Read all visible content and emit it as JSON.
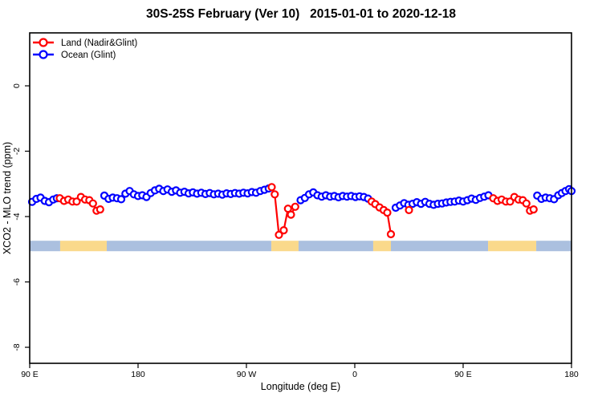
{
  "chart_data": {
    "type": "line",
    "title": "30S-25S February (Ver 10)   2015-01-01 to 2020-12-18",
    "xlabel": "Longitude (deg E)",
    "ylabel": "XCO2 - MLO trend (ppm)",
    "xlim": [
      90,
      540
    ],
    "ylim": [
      -8.49,
      1.62
    ],
    "grid": "off",
    "legend_position": "top-left",
    "x_ticks": [
      {
        "pos": 90,
        "label": "90 E"
      },
      {
        "pos": 180,
        "label": "180"
      },
      {
        "pos": 270,
        "label": "90 W"
      },
      {
        "pos": 360,
        "label": "0"
      },
      {
        "pos": 450,
        "label": "90 E"
      },
      {
        "pos": 540,
        "label": "180"
      }
    ],
    "y_ticks": [
      {
        "pos": 0,
        "label": "0"
      },
      {
        "pos": -2,
        "label": "-2"
      },
      {
        "pos": -4,
        "label": "-4"
      },
      {
        "pos": -6,
        "label": "-6"
      },
      {
        "pos": -8,
        "label": "-8"
      }
    ],
    "band": {
      "description": "surface type strip: land vs ocean along longitude",
      "top": -4.74,
      "bottom": -5.06,
      "colors": {
        "ocean": "#ABC0DF",
        "land": "#FAD98B"
      },
      "segments": [
        {
          "from": 90,
          "to": 115.3,
          "type": "ocean"
        },
        {
          "from": 115.3,
          "to": 154,
          "type": "land"
        },
        {
          "from": 154,
          "to": 290.7,
          "type": "ocean"
        },
        {
          "from": 290.7,
          "to": 313.3,
          "type": "land"
        },
        {
          "from": 313.3,
          "to": 375.3,
          "type": "ocean"
        },
        {
          "from": 375.3,
          "to": 390,
          "type": "land"
        },
        {
          "from": 390,
          "to": 470.7,
          "type": "ocean"
        },
        {
          "from": 470.7,
          "to": 510.7,
          "type": "land"
        },
        {
          "from": 510.7,
          "to": 540,
          "type": "ocean"
        }
      ]
    },
    "series": [
      {
        "id": "land",
        "name": "Land (Nadir&Glint)",
        "color": "#FF0000",
        "segments": [
          [
            [
              115,
              -3.44
            ],
            [
              118.5,
              -3.52
            ],
            [
              122,
              -3.48
            ],
            [
              125.5,
              -3.54
            ],
            [
              129,
              -3.54
            ],
            [
              132.5,
              -3.4
            ],
            [
              136,
              -3.48
            ],
            [
              139.5,
              -3.5
            ],
            [
              142.5,
              -3.6
            ],
            [
              145.5,
              -3.82
            ],
            [
              148.5,
              -3.78
            ]
          ],
          [
            [
              291,
              -3.1
            ],
            [
              293.5,
              -3.32
            ],
            [
              297,
              -4.56
            ],
            [
              301,
              -4.42
            ],
            [
              304.5,
              -3.76
            ],
            [
              307,
              -3.94
            ],
            [
              310.5,
              -3.7
            ]
          ],
          [
            [
              374,
              -3.54
            ],
            [
              377,
              -3.62
            ],
            [
              380.5,
              -3.72
            ],
            [
              384,
              -3.8
            ],
            [
              387,
              -3.88
            ],
            [
              390,
              -4.54
            ]
          ],
          [
            [
              405,
              -3.8
            ]
          ],
          [
            [
              475,
              -3.44
            ],
            [
              478.5,
              -3.52
            ],
            [
              482,
              -3.48
            ],
            [
              485.5,
              -3.54
            ],
            [
              489,
              -3.54
            ],
            [
              492.5,
              -3.4
            ],
            [
              496,
              -3.48
            ],
            [
              499.5,
              -3.5
            ],
            [
              502.5,
              -3.6
            ],
            [
              505.5,
              -3.82
            ],
            [
              508.5,
              -3.78
            ]
          ]
        ]
      },
      {
        "id": "ocean",
        "name": "Ocean (Glint)",
        "color": "#0000FF",
        "segments": [
          [
            [
              92,
              -3.55
            ],
            [
              95.5,
              -3.46
            ],
            [
              99,
              -3.42
            ],
            [
              102.5,
              -3.52
            ],
            [
              106,
              -3.56
            ],
            [
              109.5,
              -3.48
            ],
            [
              112.5,
              -3.44
            ]
          ],
          [
            [
              152,
              -3.36
            ],
            [
              155.5,
              -3.46
            ],
            [
              159,
              -3.42
            ],
            [
              162.5,
              -3.44
            ],
            [
              166,
              -3.47
            ],
            [
              169.5,
              -3.3
            ],
            [
              173,
              -3.22
            ],
            [
              176.5,
              -3.32
            ],
            [
              180,
              -3.37
            ],
            [
              183.5,
              -3.35
            ],
            [
              187,
              -3.4
            ],
            [
              190.5,
              -3.28
            ],
            [
              194,
              -3.2
            ],
            [
              197.5,
              -3.15
            ],
            [
              201,
              -3.22
            ],
            [
              204.5,
              -3.17
            ],
            [
              208,
              -3.24
            ],
            [
              211.5,
              -3.2
            ],
            [
              215,
              -3.27
            ],
            [
              218.5,
              -3.24
            ],
            [
              222,
              -3.29
            ],
            [
              225.5,
              -3.26
            ],
            [
              229,
              -3.3
            ],
            [
              232.5,
              -3.27
            ],
            [
              236,
              -3.31
            ],
            [
              239.5,
              -3.28
            ],
            [
              243,
              -3.32
            ],
            [
              246.5,
              -3.3
            ],
            [
              250,
              -3.33
            ],
            [
              253.5,
              -3.29
            ],
            [
              257,
              -3.31
            ],
            [
              260.5,
              -3.28
            ],
            [
              264,
              -3.3
            ],
            [
              267.5,
              -3.27
            ],
            [
              271,
              -3.29
            ],
            [
              274.5,
              -3.25
            ],
            [
              278,
              -3.27
            ],
            [
              281.5,
              -3.22
            ],
            [
              285,
              -3.18
            ],
            [
              288.5,
              -3.14
            ]
          ],
          [
            [
              315,
              -3.5
            ],
            [
              318.5,
              -3.43
            ],
            [
              322,
              -3.32
            ],
            [
              325.5,
              -3.26
            ],
            [
              329,
              -3.35
            ],
            [
              332.5,
              -3.39
            ],
            [
              336,
              -3.35
            ],
            [
              339.5,
              -3.39
            ],
            [
              343,
              -3.37
            ],
            [
              346.5,
              -3.41
            ],
            [
              350,
              -3.37
            ],
            [
              353.5,
              -3.39
            ],
            [
              357,
              -3.37
            ],
            [
              360.5,
              -3.4
            ],
            [
              364,
              -3.38
            ],
            [
              367.5,
              -3.4
            ],
            [
              371,
              -3.45
            ]
          ],
          [
            [
              394,
              -3.73
            ],
            [
              397.5,
              -3.66
            ],
            [
              401,
              -3.59
            ],
            [
              404.5,
              -3.64
            ],
            [
              408,
              -3.61
            ],
            [
              411.5,
              -3.56
            ],
            [
              415,
              -3.61
            ],
            [
              418.5,
              -3.55
            ],
            [
              422,
              -3.61
            ],
            [
              425.5,
              -3.64
            ],
            [
              429,
              -3.61
            ],
            [
              432.5,
              -3.6
            ],
            [
              436,
              -3.57
            ],
            [
              439.5,
              -3.55
            ],
            [
              443,
              -3.54
            ],
            [
              446.5,
              -3.51
            ],
            [
              450,
              -3.54
            ],
            [
              453.5,
              -3.5
            ],
            [
              457,
              -3.45
            ],
            [
              460.5,
              -3.49
            ],
            [
              464,
              -3.43
            ],
            [
              467.5,
              -3.39
            ],
            [
              471,
              -3.35
            ]
          ],
          [
            [
              511.5,
              -3.36
            ],
            [
              515,
              -3.46
            ],
            [
              518.5,
              -3.42
            ],
            [
              522,
              -3.44
            ],
            [
              525.5,
              -3.47
            ],
            [
              529,
              -3.35
            ],
            [
              532,
              -3.28
            ],
            [
              535,
              -3.22
            ],
            [
              538,
              -3.16
            ],
            [
              540,
              -3.22
            ]
          ]
        ]
      }
    ]
  }
}
